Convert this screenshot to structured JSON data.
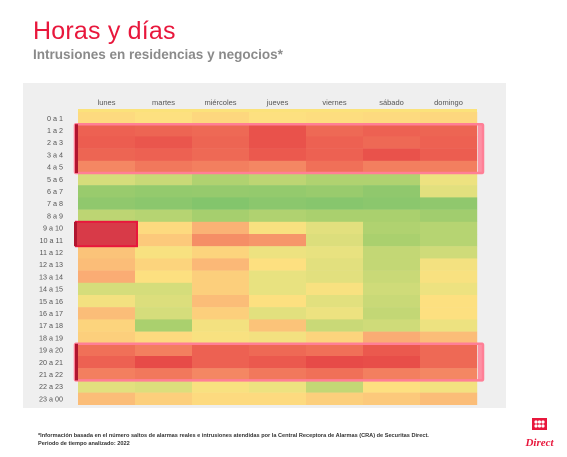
{
  "header": {
    "title": "Horas y días",
    "subtitle": "Intrusiones en residencias y negocios*"
  },
  "footnote": {
    "line1": "*Información basada en el número saltos de alarmas reales e intrusiones atendidas por la Central Receptora de Alarmas (CRA) de Securitas Direct.",
    "line2": "Periodo de tiempo analizado: 2022"
  },
  "logo": {
    "text": "Direct",
    "brand": "Securitas Direct"
  },
  "colors": {
    "title": "#e8173c",
    "highlight": "#ff7f96",
    "highlight_left": "#b01630",
    "panel": "#efefef"
  },
  "chart_data": {
    "type": "heatmap",
    "title": "Horas y días",
    "subtitle": "Intrusiones en residencias y negocios*",
    "x": [
      "lunes",
      "martes",
      "miércoles",
      "jueves",
      "viernes",
      "sábado",
      "domingo"
    ],
    "y": [
      "0 a 1",
      "1 a 2",
      "2 a 3",
      "3 a 4",
      "4 a 5",
      "5 a 6",
      "6 a 7",
      "7 a 8",
      "8 a 9",
      "9 a 10",
      "10 a 11",
      "11 a 12",
      "12 a 13",
      "13 a 14",
      "14 a 15",
      "15 a 16",
      "16 a 17",
      "17 a 18",
      "18 a 19",
      "19 a 20",
      "20 a 21",
      "21 a 22",
      "22 a 23",
      "23 a 00"
    ],
    "scale": "0 = verde (menos intrusiones) · 1 = rojo (más intrusiones)",
    "values": [
      [
        0.52,
        0.5,
        0.53,
        0.5,
        0.51,
        0.52,
        0.53
      ],
      [
        0.88,
        0.87,
        0.86,
        0.92,
        0.86,
        0.88,
        0.87
      ],
      [
        0.89,
        0.91,
        0.87,
        0.92,
        0.88,
        0.86,
        0.88
      ],
      [
        0.87,
        0.88,
        0.86,
        0.9,
        0.88,
        0.92,
        0.89
      ],
      [
        0.78,
        0.82,
        0.8,
        0.78,
        0.84,
        0.8,
        0.8
      ],
      [
        0.36,
        0.32,
        0.24,
        0.28,
        0.24,
        0.24,
        0.44
      ],
      [
        0.14,
        0.12,
        0.13,
        0.12,
        0.14,
        0.1,
        0.4
      ],
      [
        0.1,
        0.08,
        0.04,
        0.08,
        0.06,
        0.08,
        0.1
      ],
      [
        0.28,
        0.26,
        0.2,
        0.24,
        0.22,
        0.22,
        0.18
      ],
      [
        0.96,
        0.52,
        0.66,
        0.48,
        0.4,
        0.24,
        0.26
      ],
      [
        0.98,
        0.58,
        0.76,
        0.74,
        0.38,
        0.22,
        0.26
      ],
      [
        0.6,
        0.48,
        0.54,
        0.44,
        0.42,
        0.3,
        0.34
      ],
      [
        0.62,
        0.54,
        0.64,
        0.5,
        0.4,
        0.3,
        0.46
      ],
      [
        0.68,
        0.5,
        0.56,
        0.42,
        0.4,
        0.32,
        0.48
      ],
      [
        0.36,
        0.36,
        0.56,
        0.42,
        0.48,
        0.34,
        0.44
      ],
      [
        0.46,
        0.38,
        0.62,
        0.5,
        0.4,
        0.32,
        0.5
      ],
      [
        0.62,
        0.36,
        0.56,
        0.4,
        0.44,
        0.3,
        0.5
      ],
      [
        0.54,
        0.22,
        0.46,
        0.6,
        0.32,
        0.34,
        0.44
      ],
      [
        0.56,
        0.52,
        0.48,
        0.46,
        0.54,
        0.68,
        0.62
      ],
      [
        0.84,
        0.8,
        0.88,
        0.86,
        0.84,
        0.9,
        0.86
      ],
      [
        0.88,
        0.94,
        0.88,
        0.9,
        0.94,
        0.93,
        0.86
      ],
      [
        0.8,
        0.82,
        0.78,
        0.82,
        0.84,
        0.8,
        0.78
      ],
      [
        0.4,
        0.38,
        0.48,
        0.44,
        0.3,
        0.5,
        0.46
      ],
      [
        0.62,
        0.56,
        0.52,
        0.52,
        0.56,
        0.58,
        0.62
      ]
    ],
    "highlight_bands": [
      [
        "1 a 2",
        "4 a 5"
      ],
      [
        "19 a 20",
        "21 a 22"
      ]
    ],
    "highlight_cells": [
      {
        "x": "lunes",
        "y_from": "9 a 10",
        "y_to": "10 a 11"
      }
    ],
    "grid": false,
    "legend": "none"
  }
}
